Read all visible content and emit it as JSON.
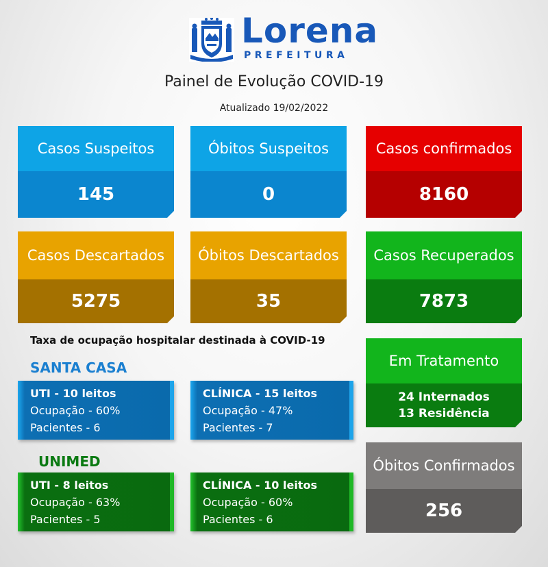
{
  "brand": {
    "name": "Lorena",
    "subtitle": "PREFEITURA"
  },
  "title": "Painel de Evolução COVID-19",
  "updated": "Atualizado 19/02/2022",
  "colors": {
    "blue": "#0ea4e6",
    "red": "#e60000",
    "gold": "#e8a300",
    "green": "#12b51c",
    "gray": "#7e7c7b",
    "brand_blue": "#1858b8"
  },
  "cards": {
    "suspected_cases": {
      "label": "Casos Suspeitos",
      "value": "145"
    },
    "suspected_deaths": {
      "label": "Óbitos Suspeitos",
      "value": "0"
    },
    "confirmed_cases": {
      "label": "Casos confirmados",
      "value": "8160"
    },
    "discarded_cases": {
      "label": "Casos Descartados",
      "value": "5275"
    },
    "discarded_deaths": {
      "label": "Óbitos Descartados",
      "value": "35"
    },
    "recovered": {
      "label": "Casos Recuperados",
      "value": "7873"
    },
    "in_treatment": {
      "label": "Em Tratamento",
      "line1": "24 Internados",
      "line2": "13 Residência"
    },
    "confirmed_deaths": {
      "label": "Óbitos Confirmados",
      "value": "256"
    }
  },
  "occupancy": {
    "title": "Taxa de ocupação hospitalar destinada à COVID-19",
    "santa_casa": {
      "name": "SANTA CASA",
      "uti": {
        "title": "UTI - 10 leitos",
        "occupancy": "Ocupação - 60%",
        "patients": "Pacientes - 6"
      },
      "clinica": {
        "title": "CLÍNICA - 15 leitos",
        "occupancy": "Ocupação - 47%",
        "patients": "Pacientes - 7"
      }
    },
    "unimed": {
      "name": "UNIMED",
      "uti": {
        "title": "UTI - 8 leitos",
        "occupancy": "Ocupação - 63%",
        "patients": "Pacientes - 5"
      },
      "clinica": {
        "title": "CLÍNICA - 10 leitos",
        "occupancy": "Ocupação - 60%",
        "patients": "Pacientes - 6"
      }
    }
  }
}
